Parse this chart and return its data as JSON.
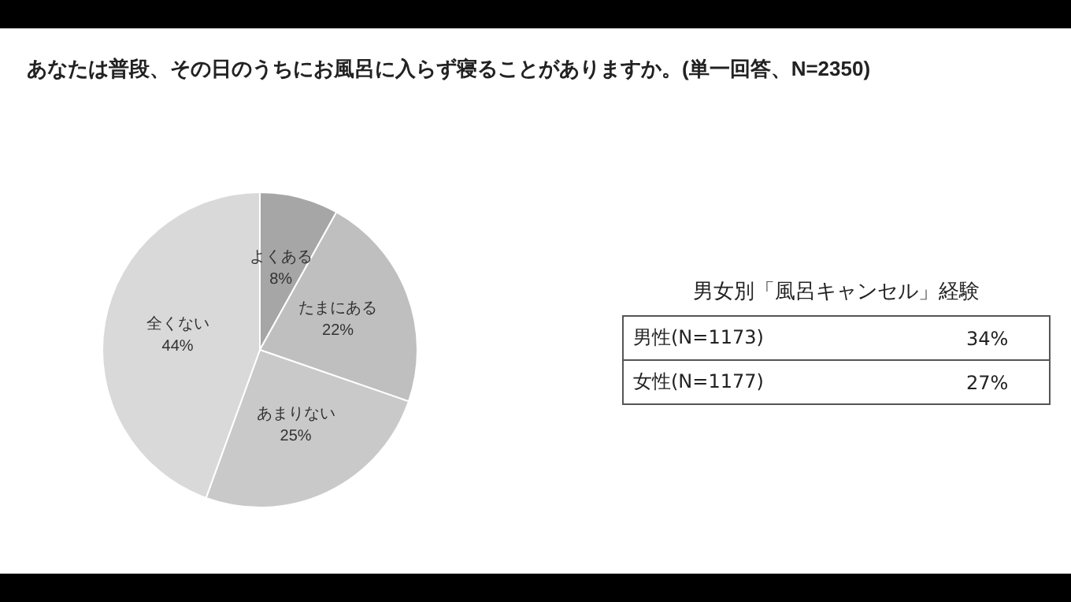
{
  "chart_data": [
    {
      "type": "pie",
      "title": "あなたは普段、その日のうちにお風呂に入らず寝ることがありますか。(単一回答、N=2350)",
      "categories": [
        "よくある",
        "たまにある",
        "あまりない",
        "全くない"
      ],
      "values": [
        8,
        22,
        25,
        44
      ],
      "value_labels": [
        "8%",
        "22%",
        "25%",
        "44%"
      ],
      "colors": [
        "#a6a6a6",
        "#bfbfbf",
        "#c9c9c9",
        "#d9d9d9"
      ],
      "legend": false
    },
    {
      "type": "other",
      "title": "男女別「風呂キャンセル」経験",
      "annotations": [
        "男性(N=1173)",
        "34%",
        "女性(N=1177)",
        "27%"
      ]
    }
  ]
}
